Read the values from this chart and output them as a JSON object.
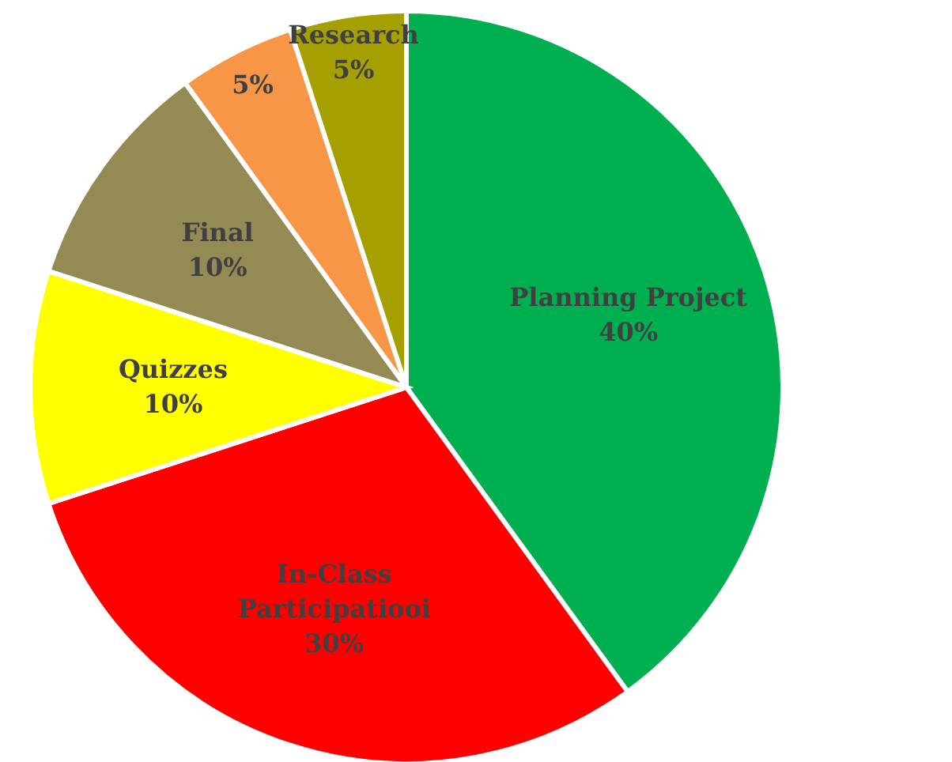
{
  "chart_data": {
    "type": "pie",
    "categories": [
      "Planning Project",
      "In-Class Participatiooi",
      "Quizzes",
      "Final",
      null,
      "Research"
    ],
    "values": [
      40,
      30,
      10,
      10,
      5,
      5
    ],
    "value_labels": [
      "40%",
      "30%",
      "10%",
      "10%",
      "5%",
      "5%"
    ],
    "colors": [
      "#00b050",
      "#ff0000",
      "#ffff00",
      "#948a54",
      "#f79646",
      "#a5a000"
    ]
  }
}
